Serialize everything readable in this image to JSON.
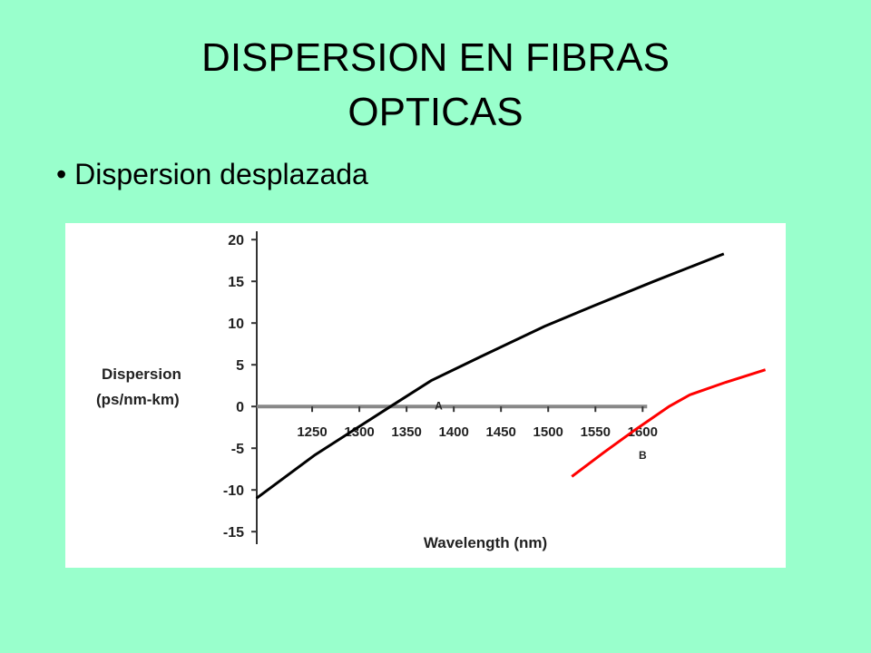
{
  "slide": {
    "title": [
      "DISPERSION EN FIBRAS",
      "OPTICAS"
    ],
    "bullets": [
      "Dispersion desplazada"
    ]
  },
  "chart_data": {
    "type": "line",
    "xlabel": "Wavelength (nm)",
    "ylabel": [
      "Dispersion",
      "(ps/nm-km)"
    ],
    "xlim": [
      1190,
      1740
    ],
    "ylim": [
      -16.5,
      21
    ],
    "xticks": [
      1250,
      1300,
      1350,
      1400,
      1450,
      1500,
      1550,
      1600
    ],
    "yticks": [
      20,
      15,
      10,
      5,
      0,
      -5,
      -10,
      -15
    ],
    "series": [
      {
        "name": "A",
        "color": "#000000",
        "x": [
          1191,
          1253,
          1333,
          1376,
          1429,
          1496,
          1549,
          1612,
          1686
        ],
        "values": [
          -11,
          -5.8,
          0,
          3.1,
          6.0,
          9.6,
          12.1,
          15.0,
          18.3
        ]
      },
      {
        "name": "B",
        "color": "#ff0000",
        "x": [
          1525,
          1559,
          1592,
          1628,
          1650,
          1688,
          1730
        ],
        "values": [
          -8.4,
          -5.5,
          -2.8,
          0,
          1.4,
          2.9,
          4.4
        ]
      }
    ]
  }
}
